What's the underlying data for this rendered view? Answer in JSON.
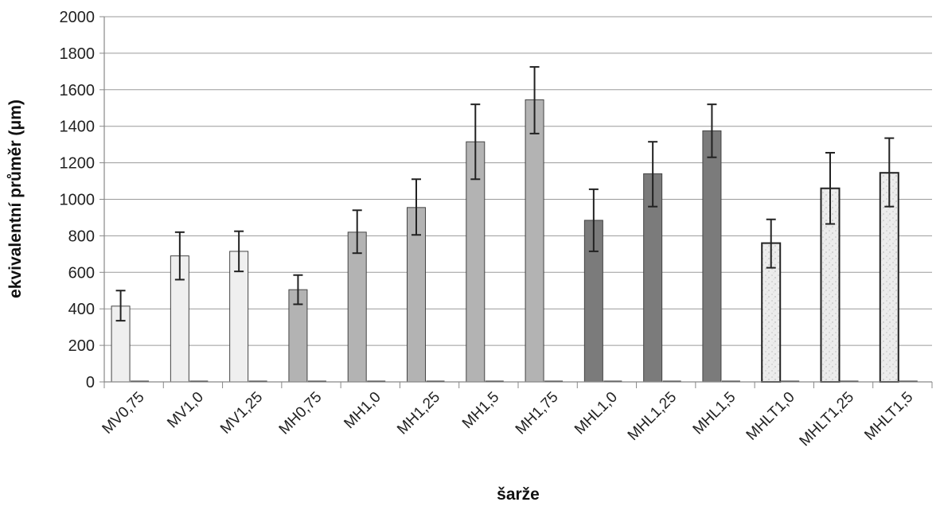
{
  "chart_data": {
    "type": "bar",
    "xlabel": "šarže",
    "ylabel": "ekvivalentní průměr (μm)",
    "ylim": [
      0,
      2000
    ],
    "yticks": [
      0,
      200,
      400,
      600,
      800,
      1000,
      1200,
      1400,
      1600,
      1800,
      2000
    ],
    "grid": true,
    "categories": [
      "MV0,75",
      "MV1,0",
      "MV1,25",
      "MH0,75",
      "MH1,0",
      "MH1,25",
      "MH1,5",
      "MH1,75",
      "MHL1,0",
      "MHL1,25",
      "MHL1,5",
      "MHLT1,0",
      "MHLT1,25",
      "MHLT1,5"
    ],
    "values": [
      415,
      690,
      715,
      505,
      820,
      955,
      1315,
      1545,
      885,
      1140,
      1375,
      760,
      1060,
      1145
    ],
    "error_low": [
      335,
      560,
      605,
      425,
      705,
      805,
      1110,
      1360,
      715,
      960,
      1230,
      625,
      865,
      960
    ],
    "error_high": [
      500,
      820,
      825,
      585,
      940,
      1110,
      1520,
      1725,
      1055,
      1315,
      1520,
      890,
      1255,
      1335
    ],
    "second_series_values": [
      0,
      0,
      0,
      0,
      0,
      0,
      0,
      0,
      0,
      0,
      0,
      0,
      0,
      0
    ],
    "colors": [
      "#efefef",
      "#efefef",
      "#efefef",
      "#b3b3b3",
      "#b3b3b3",
      "#b3b3b3",
      "#b3b3b3",
      "#b3b3b3",
      "#7b7b7b",
      "#7b7b7b",
      "#7b7b7b",
      "#e9e9e9",
      "#e9e9e9",
      "#e9e9e9"
    ]
  }
}
